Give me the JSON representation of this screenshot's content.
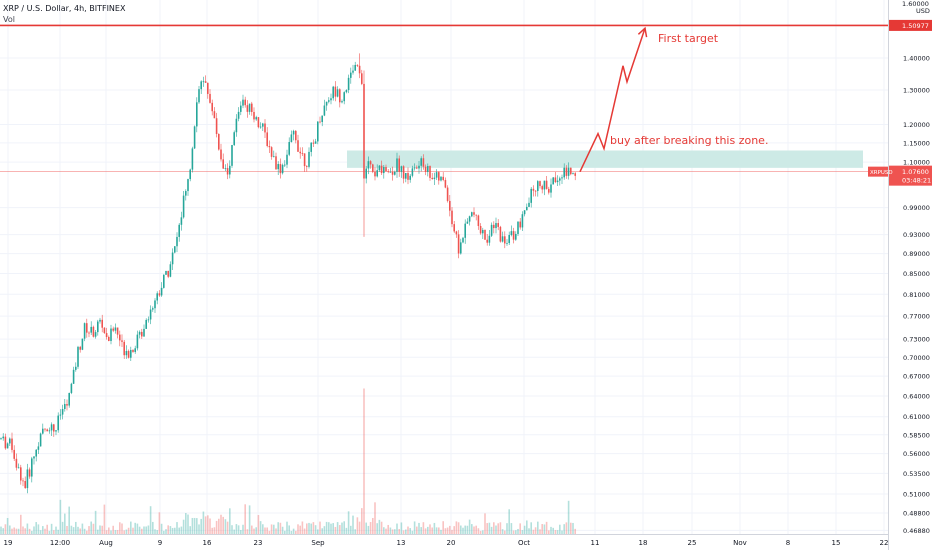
{
  "header": {
    "title": "XRP / U.S. Dollar, 4h, BITFINEX",
    "volume_label": "Vol"
  },
  "annotations": {
    "target_label": "First target",
    "zone_label": "buy after breaking this zone."
  },
  "price_axis": {
    "currency_label": "USD",
    "first_label": "1.60000",
    "target_tag": "1.50977",
    "last_price_tag": "1.07600",
    "countdown_tag": "03:48:21",
    "symbol_tag": "XRPUSD"
  },
  "colors": {
    "up": "#26a69a",
    "down": "#ef5350",
    "annotation": "#e53935",
    "zone": "#cdeae6",
    "grid": "#f0f3fa"
  },
  "chart_data": {
    "type": "candlestick",
    "title": "XRP / U.S. Dollar, 4h, BITFINEX",
    "y_scale": "log",
    "ylim": [
      0.46,
      1.62
    ],
    "y_ticks": [
      1.4,
      1.3,
      1.2,
      1.15,
      1.1,
      0.99,
      0.93,
      0.89,
      0.85,
      0.81,
      0.77,
      0.73,
      0.7,
      0.67,
      0.64,
      0.61,
      0.585,
      0.56,
      0.535,
      0.51,
      0.488,
      0.4688
    ],
    "x_tick_labels": [
      "19",
      "12:00",
      "Aug",
      "9",
      "16",
      "23",
      "Sep",
      "13",
      "20",
      "Oct",
      "11",
      "18",
      "25",
      "Nov",
      "8",
      "15",
      "22"
    ],
    "target_price": 1.50977,
    "last_price": 1.076,
    "breakout_zone": [
      1.0855,
      1.13
    ],
    "price_path": [
      [
        0,
        0.58
      ],
      [
        12,
        0.57
      ],
      [
        18,
        0.54
      ],
      [
        25,
        0.52
      ],
      [
        32,
        0.55
      ],
      [
        40,
        0.58
      ],
      [
        48,
        0.6
      ],
      [
        55,
        0.59
      ],
      [
        62,
        0.62
      ],
      [
        68,
        0.63
      ],
      [
        72,
        0.66
      ],
      [
        78,
        0.71
      ],
      [
        85,
        0.75
      ],
      [
        92,
        0.74
      ],
      [
        100,
        0.76
      ],
      [
        108,
        0.73
      ],
      [
        115,
        0.75
      ],
      [
        122,
        0.72
      ],
      [
        130,
        0.71
      ],
      [
        138,
        0.73
      ],
      [
        145,
        0.76
      ],
      [
        152,
        0.79
      ],
      [
        160,
        0.82
      ],
      [
        168,
        0.86
      ],
      [
        175,
        0.9
      ],
      [
        182,
        0.98
      ],
      [
        190,
        1.08
      ],
      [
        196,
        1.25
      ],
      [
        202,
        1.33
      ],
      [
        208,
        1.3
      ],
      [
        215,
        1.2
      ],
      [
        222,
        1.1
      ],
      [
        228,
        1.07
      ],
      [
        235,
        1.19
      ],
      [
        242,
        1.28
      ],
      [
        250,
        1.25
      ],
      [
        258,
        1.21
      ],
      [
        265,
        1.17
      ],
      [
        272,
        1.12
      ],
      [
        280,
        1.08
      ],
      [
        287,
        1.12
      ],
      [
        294,
        1.18
      ],
      [
        300,
        1.13
      ],
      [
        307,
        1.1
      ],
      [
        314,
        1.15
      ],
      [
        320,
        1.22
      ],
      [
        327,
        1.27
      ],
      [
        334,
        1.3
      ],
      [
        341,
        1.28
      ],
      [
        348,
        1.32
      ],
      [
        354,
        1.37
      ],
      [
        358,
        1.4
      ],
      [
        362,
        1.32
      ],
      [
        364,
        1.05
      ],
      [
        368,
        1.1
      ],
      [
        375,
        1.06
      ],
      [
        382,
        1.09
      ],
      [
        390,
        1.07
      ],
      [
        398,
        1.1
      ],
      [
        406,
        1.06
      ],
      [
        414,
        1.08
      ],
      [
        422,
        1.1
      ],
      [
        430,
        1.07
      ],
      [
        438,
        1.06
      ],
      [
        446,
        1.04
      ],
      [
        452,
        0.96
      ],
      [
        459,
        0.9
      ],
      [
        466,
        0.95
      ],
      [
        473,
        0.98
      ],
      [
        480,
        0.94
      ],
      [
        488,
        0.92
      ],
      [
        496,
        0.95
      ],
      [
        504,
        0.91
      ],
      [
        512,
        0.93
      ],
      [
        520,
        0.95
      ],
      [
        527,
        0.99
      ],
      [
        533,
        1.03
      ],
      [
        540,
        1.05
      ],
      [
        548,
        1.03
      ],
      [
        556,
        1.06
      ],
      [
        563,
        1.08
      ],
      [
        570,
        1.07
      ],
      [
        576,
        1.076
      ]
    ],
    "projection_path": [
      [
        580,
        1.076
      ],
      [
        598,
        1.175
      ],
      [
        604,
        1.135
      ],
      [
        623,
        1.375
      ],
      [
        627,
        1.325
      ],
      [
        645,
        1.5
      ]
    ]
  }
}
